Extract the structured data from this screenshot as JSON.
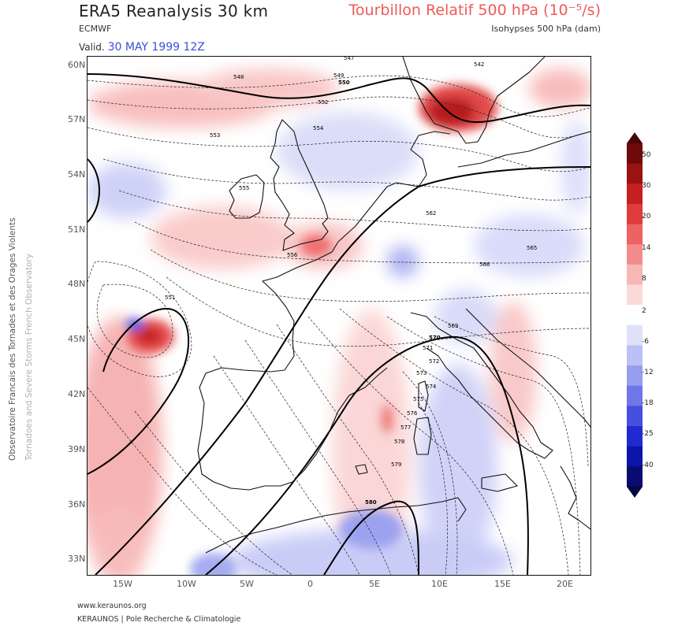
{
  "header": {
    "title": "ERA5 Reanalysis 30 km",
    "subtitle": "ECMWF",
    "valid_label": "Valid.",
    "valid_date": "30 MAY 1999 12Z",
    "field_title": "Tourbillon Relatif 500 hPa (10⁻⁵/s)",
    "contour_title": "Isohypses 500 hPa (dam)"
  },
  "side_text": {
    "line1": "Observatoire Francais des Tornades et des Orages Violents",
    "line2": "Tornadoes and Severe Storms French Observatory"
  },
  "footer": {
    "url": "www.keraunos.org",
    "org": "KERAUNOS | Pole Recherche & Climatologie"
  },
  "axes": {
    "lat_labels": [
      "60N",
      "57N",
      "54N",
      "51N",
      "48N",
      "45N",
      "42N",
      "39N",
      "36N",
      "33N"
    ],
    "lon_labels": [
      "15W",
      "10W",
      "5W",
      "0",
      "5E",
      "10E",
      "15E",
      "20E"
    ]
  },
  "colorbar": {
    "labels": [
      "50",
      "30",
      "20",
      "14",
      "8",
      "2",
      "-6",
      "-12",
      "-18",
      "-25",
      "-40"
    ],
    "colors": [
      "#6e0a0a",
      "#9a1212",
      "#c51f1f",
      "#e03a3a",
      "#ee6262",
      "#f48c8c",
      "#f9b6b6",
      "#fcd9d9",
      "#ffffff",
      "#dfe1fb",
      "#bcc0f6",
      "#979df0",
      "#6f77e8",
      "#4650de",
      "#1f2bd0",
      "#0c15a8",
      "#080c6e"
    ],
    "top_color": "#4a0606",
    "bottom_color": "#050840"
  },
  "contours": {
    "solid_labels": [
      "550",
      "570",
      "580"
    ],
    "dashed_labels": [
      "542",
      "547",
      "548",
      "549",
      "551",
      "552",
      "553",
      "554",
      "555",
      "556",
      "562",
      "565",
      "566",
      "569",
      "571",
      "572",
      "573",
      "574",
      "575",
      "576",
      "577",
      "578",
      "579"
    ]
  }
}
